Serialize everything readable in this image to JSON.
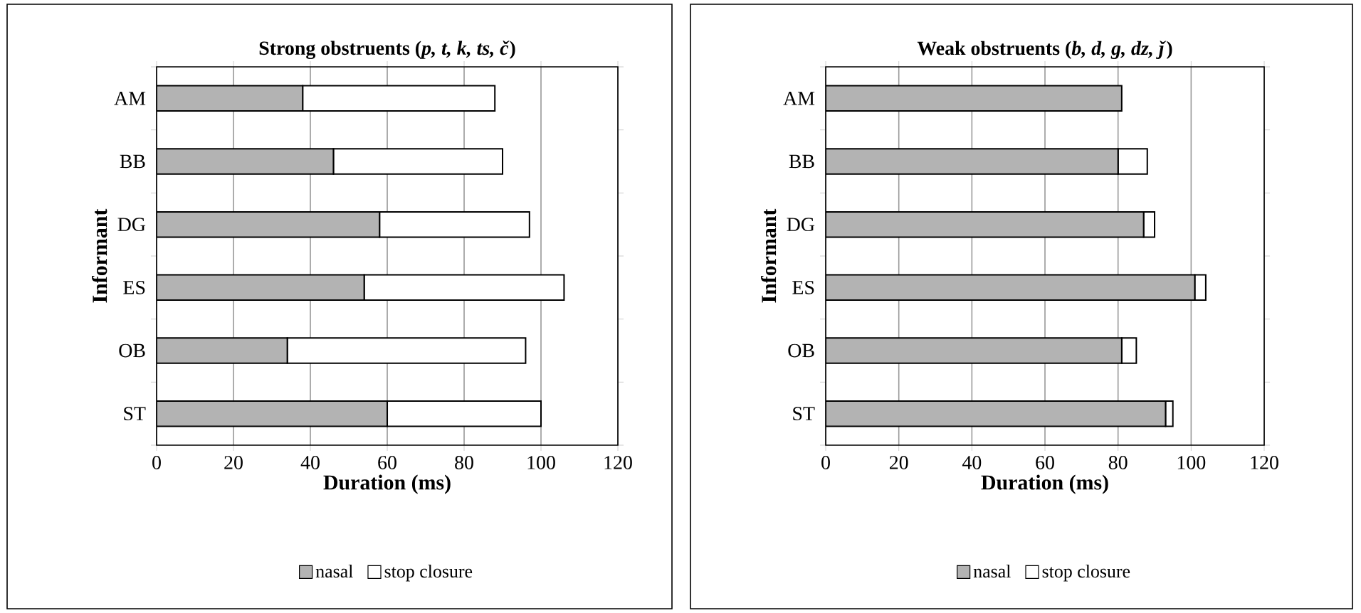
{
  "chart_data": [
    {
      "type": "bar",
      "orientation": "horizontal",
      "stacked": true,
      "title": "Strong obstruents (*p, t, k, ts, č*)",
      "xlabel": "Duration (ms)",
      "ylabel": "Informant",
      "categories": [
        "AM",
        "BB",
        "DG",
        "ES",
        "OB",
        "ST"
      ],
      "series": [
        {
          "name": "nasal",
          "color": "#b3b3b3",
          "values": [
            38,
            46,
            58,
            54,
            34,
            60
          ]
        },
        {
          "name": "stop closure",
          "color": "#ffffff",
          "values": [
            50,
            44,
            39,
            52,
            62,
            40
          ]
        }
      ],
      "xlim": [
        0,
        120
      ],
      "xticks": [
        0,
        20,
        40,
        60,
        80,
        100,
        120
      ],
      "grid": "x",
      "legend": "bottom"
    },
    {
      "type": "bar",
      "orientation": "horizontal",
      "stacked": true,
      "title": "Weak obstruents (*b, d, g, dz, ǰ*)",
      "xlabel": "Duration (ms)",
      "ylabel": "Informant",
      "categories": [
        "AM",
        "BB",
        "DG",
        "ES",
        "OB",
        "ST"
      ],
      "series": [
        {
          "name": "nasal",
          "color": "#b3b3b3",
          "values": [
            81,
            80,
            87,
            101,
            81,
            93
          ]
        },
        {
          "name": "stop closure",
          "color": "#ffffff",
          "values": [
            0,
            8,
            3,
            3,
            4,
            2
          ]
        }
      ],
      "xlim": [
        0,
        120
      ],
      "xticks": [
        0,
        20,
        40,
        60,
        80,
        100,
        120
      ],
      "grid": "x",
      "legend": "bottom"
    }
  ]
}
